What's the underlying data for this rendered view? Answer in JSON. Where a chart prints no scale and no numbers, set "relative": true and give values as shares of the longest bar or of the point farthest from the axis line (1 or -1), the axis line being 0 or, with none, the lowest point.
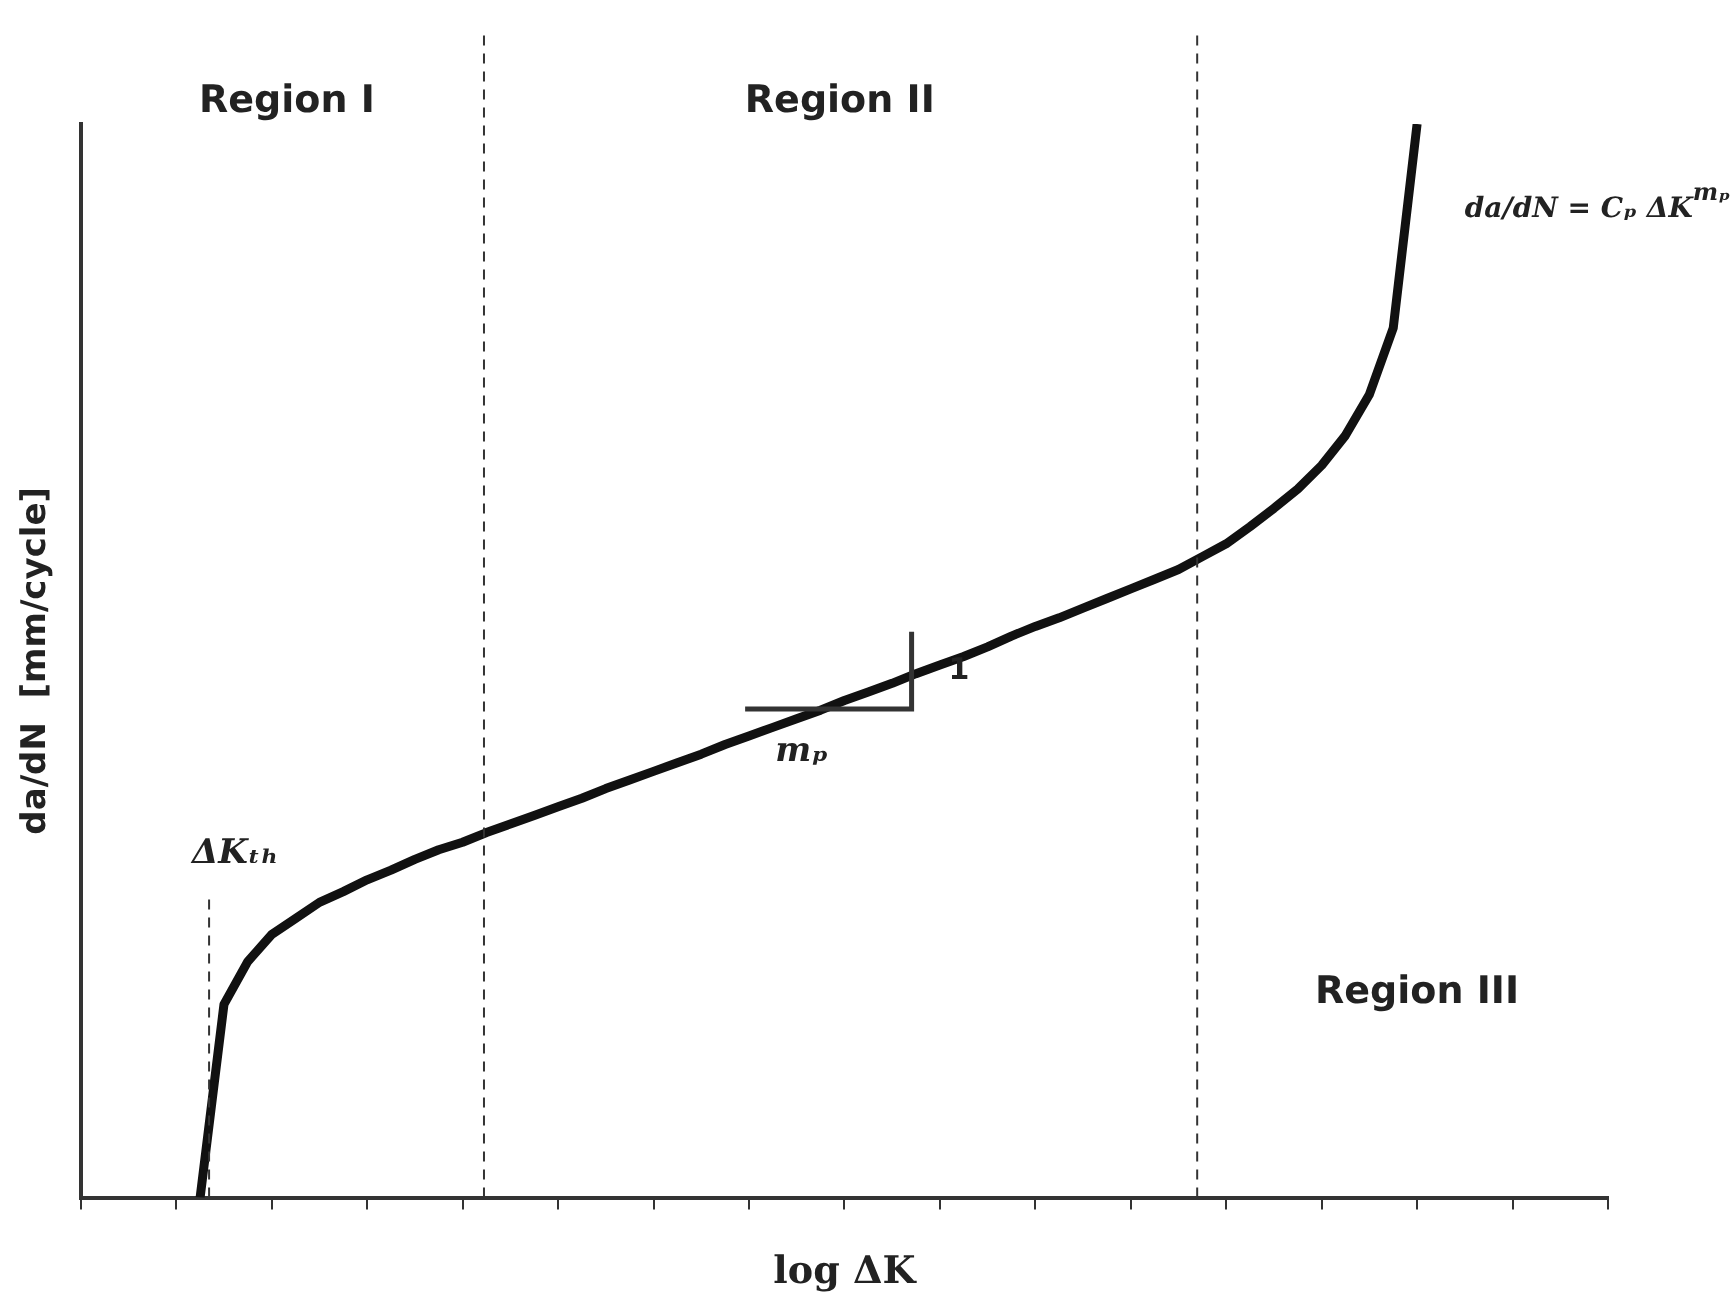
{
  "chart_data": {
    "type": "line",
    "relative": true,
    "xlabel": "log ΔK",
    "ylabel": "da/dN  [mm/cycle]",
    "categories": [
      null,
      null,
      null,
      null,
      null,
      null,
      null,
      null,
      null,
      null,
      null,
      null,
      null,
      null,
      null,
      null,
      null,
      null,
      null,
      null,
      null,
      null,
      null,
      null,
      null,
      null,
      null,
      null,
      null,
      null,
      null,
      null,
      null,
      null,
      null,
      null,
      null,
      null,
      null,
      null,
      null,
      null,
      null,
      null,
      null,
      null,
      null,
      null,
      null,
      null,
      null,
      null,
      null,
      null,
      null,
      null,
      null,
      null,
      null,
      null,
      null,
      null,
      null,
      null,
      null
    ],
    "series": [
      {
        "color": "#111111",
        "values": [
          null,
          null,
          null,
          null,
          null,
          0,
          0.18,
          0.22,
          0.245,
          0.26,
          0.275,
          0.285,
          0.296,
          0.305,
          0.315,
          0.324,
          0.331,
          0.34,
          0.348,
          0.356,
          0.364,
          0.372,
          0.381,
          0.389,
          0.397,
          0.405,
          0.413,
          0.422,
          0.43,
          0.438,
          0.446,
          0.454,
          0.463,
          0.471,
          0.479,
          0.488,
          0.496,
          0.504,
          0.513,
          0.523,
          0.532,
          0.54,
          0.549,
          0.558,
          0.567,
          0.576,
          0.585,
          0.597,
          0.609,
          0.625,
          0.642,
          0.66,
          0.682,
          0.71,
          0.748,
          0.81,
          1,
          null,
          null,
          null,
          null,
          null,
          null,
          null,
          null
        ]
      }
    ],
    "annotations": [
      "Region I",
      "Region II",
      "Region III",
      "ΔKₜₕ",
      "mₚ",
      "1",
      "da/dN = Cₚ ΔK$^{mₚ}$"
    ],
    "grid": false,
    "legend": false,
    "marker": "none",
    "line_style": "solid"
  }
}
